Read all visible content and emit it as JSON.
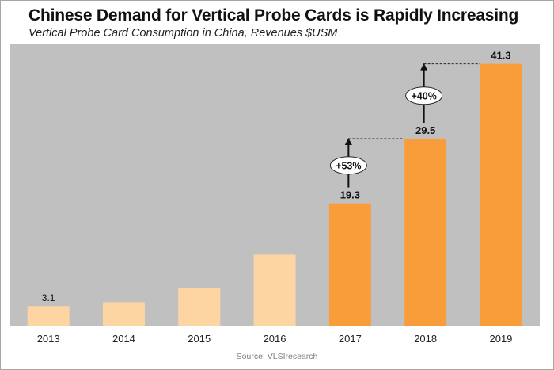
{
  "chart_data": {
    "type": "bar",
    "title": "Chinese Demand for Vertical Probe Cards is Rapidly Increasing",
    "subtitle": "Vertical Probe Card Consumption in China, Revenues $USM",
    "categories": [
      "2013",
      "2014",
      "2015",
      "2016",
      "2017",
      "2018",
      "2019"
    ],
    "values": [
      3.1,
      3.7,
      6.0,
      11.2,
      19.3,
      29.5,
      41.3
    ],
    "data_labels": [
      "3.1",
      "",
      "",
      "",
      "19.3",
      "29.5",
      "41.3"
    ],
    "xlabel": "",
    "ylabel": "",
    "ylim": [
      0,
      44.5
    ],
    "grid": false,
    "legend": "none",
    "annotations": [
      {
        "from": "2017",
        "to": "2018",
        "text": "+53%"
      },
      {
        "from": "2018",
        "to": "2019",
        "text": "+40%"
      }
    ],
    "source": "Source: VLSIresearch",
    "colors": {
      "plot_background": "#c0c0c0",
      "historical_bar": "#fdd5a3",
      "recent_bar": "#f99d3b",
      "recent_start_index": 4
    }
  }
}
